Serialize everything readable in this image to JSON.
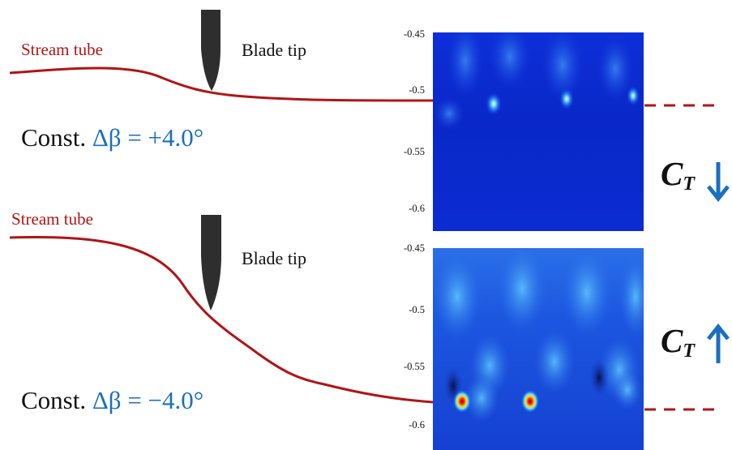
{
  "top": {
    "stream_label": "Stream tube",
    "blade_label": "Blade tip",
    "const_prefix": "Const.",
    "const_math": "Δβ  = +4.0°",
    "ct_main": "C",
    "ct_sub": "T",
    "ct_trend": "decrease",
    "y_ticks": [
      "-0.45",
      "-0.5",
      "-0.55",
      "-0.6"
    ]
  },
  "bottom": {
    "stream_label": "Stream tube",
    "blade_label": "Blade tip",
    "const_prefix": "Const.",
    "const_math": "Δβ = −4.0°",
    "ct_main": "C",
    "ct_sub": "T",
    "ct_trend": "increase",
    "y_ticks": [
      "-0.45",
      "-0.5",
      "-0.55",
      "-0.6"
    ]
  },
  "colors": {
    "stream": "#b01515",
    "accent": "#1a6fbf",
    "field_low": "#0a2ad0",
    "field_high": "#ff2a00"
  }
}
